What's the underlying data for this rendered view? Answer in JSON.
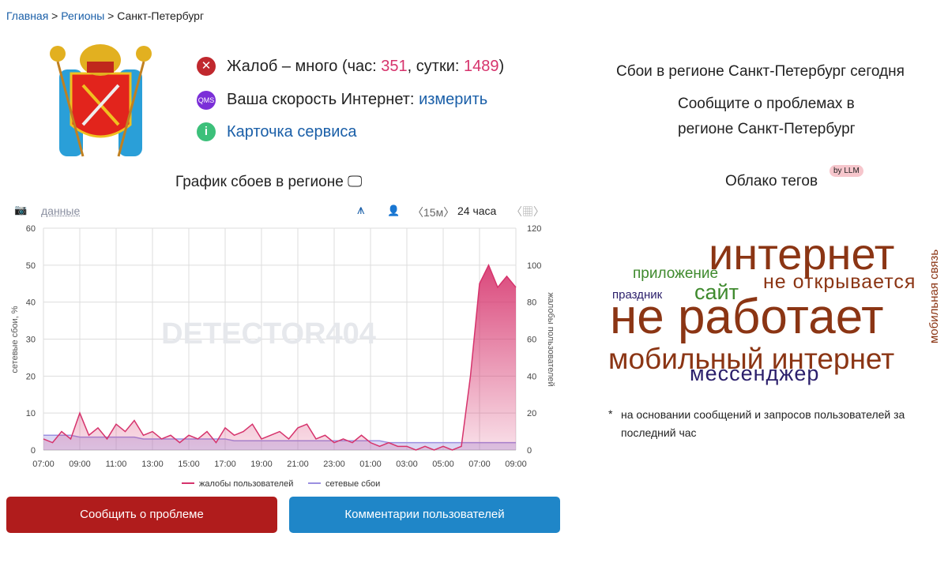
{
  "breadcrumb": [
    "Главная",
    "Регионы",
    "Санкт-Петербург"
  ],
  "status": {
    "complaints_prefix": "Жалоб – много (час: ",
    "complaints_hour": 351,
    "complaints_middle": ", сутки: ",
    "complaints_day": 1489,
    "complaints_suffix": ")",
    "speed_label": "Ваша скорость Интернет:",
    "speed_link": "измерить",
    "speed_icon": "QMS",
    "card": "Карточка сервиса"
  },
  "right_panel": {
    "title": "Сбои в регионе Санкт-Петербург сегодня",
    "report_lines": [
      "Сообщите о проблемах в",
      "регионе Санкт-Петербург"
    ],
    "cloud_title": "Облако тегов",
    "cloud_badge": "by LLM",
    "tags": [
      {
        "text": "интернет",
        "color": "#8b3514"
      },
      {
        "text": "приложение",
        "color": "#3f8a2e"
      },
      {
        "text": "не открывается",
        "color": "#8b3514"
      },
      {
        "text": "праздник",
        "color": "#2b1f6b"
      },
      {
        "text": "сайт",
        "color": "#3f8a2e"
      },
      {
        "text": "не работает",
        "color": "#8b3514"
      },
      {
        "text": "мобильная связь",
        "color": "#8b3514"
      },
      {
        "text": "мобильный интернет",
        "color": "#8b3514"
      },
      {
        "text": "мессенджер",
        "color": "#2b1f6b"
      }
    ],
    "footnote_mark": "*",
    "footnote": "на основании сообщений и запросов пользователей за последний час"
  },
  "toolbar": {
    "data_link": "данные",
    "interval": "〈15м〉",
    "period": "24 часа"
  },
  "buttons": [
    "Сообщить о проблеме",
    "Комментарии пользователей"
  ],
  "chart_data": {
    "type": "line",
    "title": "График сбоев в регионе",
    "watermark": "DETECTOR404",
    "ylabel": "сетевые сбои, %",
    "y2label": "жалобы пользователей",
    "categories": [
      "07:00",
      null,
      null,
      null,
      "09:00",
      null,
      null,
      null,
      "11:00",
      null,
      null,
      null,
      "13:00",
      null,
      null,
      null,
      "15:00",
      null,
      null,
      null,
      "17:00",
      null,
      null,
      null,
      "19:00",
      null,
      null,
      null,
      "21:00",
      null,
      null,
      null,
      "23:00",
      null,
      null,
      null,
      "01:00",
      null,
      null,
      null,
      "03:00",
      null,
      null,
      null,
      "05:00",
      null,
      null,
      null,
      "07:00",
      null,
      null,
      null,
      "09:00"
    ],
    "series": [
      {
        "name": "жалобы пользователей",
        "color": "#d6336c",
        "axis": "y2",
        "values": [
          6,
          4,
          10,
          6,
          20,
          8,
          12,
          6,
          14,
          10,
          16,
          8,
          10,
          6,
          8,
          4,
          8,
          6,
          10,
          4,
          12,
          8,
          10,
          14,
          6,
          8,
          10,
          6,
          12,
          14,
          6,
          8,
          4,
          6,
          4,
          8,
          4,
          2,
          4,
          2,
          2,
          0,
          2,
          0,
          2,
          0,
          2,
          40,
          90,
          100,
          88,
          94,
          88
        ]
      },
      {
        "name": "сетевые сбои",
        "color": "#9b8fe0",
        "values": [
          4,
          4,
          4,
          4,
          3.5,
          3.5,
          3.5,
          3.5,
          3.5,
          3.5,
          3.5,
          3,
          3,
          3,
          3,
          3,
          3,
          3,
          3,
          3,
          3,
          2.5,
          2.5,
          2.5,
          2.5,
          2.5,
          2.5,
          2.5,
          2.5,
          2.5,
          2.5,
          2.5,
          2.5,
          2.5,
          2.5,
          2.5,
          2.5,
          2.5,
          2,
          2,
          2,
          2,
          2,
          2,
          2,
          2,
          2,
          2,
          2,
          2,
          2,
          2,
          2
        ]
      }
    ],
    "ylim": [
      0,
      60
    ],
    "yticks": [
      0,
      10,
      20,
      30,
      40,
      50,
      60
    ],
    "y2lim": [
      0,
      120
    ],
    "y2ticks": [
      0,
      20,
      40,
      60,
      80,
      100,
      120
    ],
    "grid": true
  }
}
